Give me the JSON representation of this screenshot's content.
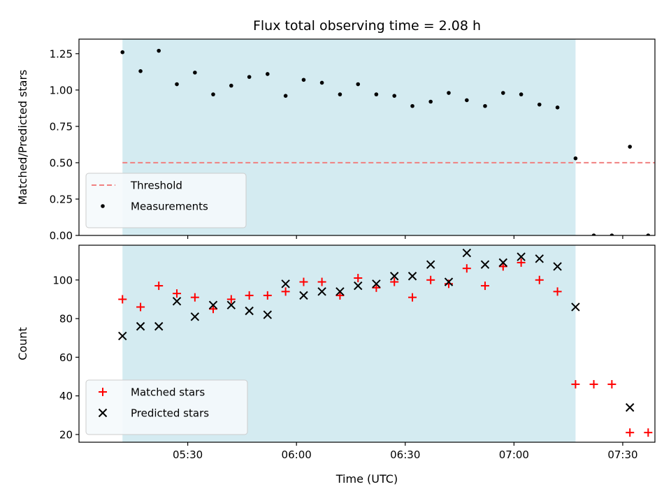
{
  "chart_data": {
    "type": "scatter",
    "title": "Flux total observing time = 2.08 h",
    "xlabel": "Time (UTC)",
    "x_unit": "minutes",
    "x_range": [
      5.0,
      7.648
    ],
    "x_ticks": [
      {
        "value": 5.5,
        "label": "05:30"
      },
      {
        "value": 6.0,
        "label": "06:00"
      },
      {
        "value": 6.5,
        "label": "06:30"
      },
      {
        "value": 7.0,
        "label": "07:00"
      },
      {
        "value": 7.5,
        "label": "07:30"
      }
    ],
    "shaded_interval": [
      5.2,
      7.283
    ],
    "panels": [
      {
        "ylabel": "Matched/Predicted stars",
        "ylim": [
          0,
          1.35
        ],
        "yticks": [
          "0.00",
          "0.25",
          "0.50",
          "0.75",
          "1.00",
          "1.25"
        ],
        "threshold": {
          "name": "Threshold",
          "y": 0.5,
          "x": [
            5.2,
            7.8
          ],
          "color": "#f08080"
        },
        "legend": "lower-left",
        "series": [
          {
            "name": "Measurements",
            "marker": "dot",
            "color": "#000000",
            "x": [
              5.2,
              5.283,
              5.367,
              5.45,
              5.533,
              5.617,
              5.7,
              5.783,
              5.867,
              5.95,
              6.033,
              6.117,
              6.2,
              6.283,
              6.367,
              6.45,
              6.533,
              6.617,
              6.7,
              6.783,
              6.867,
              6.95,
              7.033,
              7.117,
              7.2,
              7.283,
              7.367,
              7.45,
              7.533,
              7.617
            ],
            "y": [
              1.26,
              1.13,
              1.27,
              1.04,
              1.12,
              0.97,
              1.03,
              1.09,
              1.11,
              0.96,
              1.07,
              1.05,
              0.97,
              1.04,
              0.97,
              0.96,
              0.89,
              0.92,
              0.98,
              0.93,
              0.89,
              0.98,
              0.97,
              0.9,
              0.88,
              0.53,
              0.0,
              0.0,
              0.61,
              0.0
            ]
          }
        ]
      },
      {
        "ylabel": "Count",
        "ylim": [
          16,
          118
        ],
        "yticks": [
          "20",
          "40",
          "60",
          "80",
          "100"
        ],
        "legend": "lower-left",
        "series": [
          {
            "name": "Matched stars",
            "marker": "plus",
            "color": "#ff0000",
            "x": [
              5.2,
              5.283,
              5.367,
              5.45,
              5.533,
              5.617,
              5.7,
              5.783,
              5.867,
              5.95,
              6.033,
              6.117,
              6.2,
              6.283,
              6.367,
              6.45,
              6.533,
              6.617,
              6.7,
              6.783,
              6.867,
              6.95,
              7.033,
              7.117,
              7.2,
              7.283,
              7.367,
              7.45,
              7.533,
              7.617
            ],
            "y": [
              90,
              86,
              97,
              93,
              91,
              85,
              90,
              92,
              92,
              94,
              99,
              99,
              92,
              101,
              96,
              99,
              91,
              100,
              98,
              106,
              97,
              107,
              109,
              100,
              94,
              46,
              46,
              46,
              21,
              21
            ]
          },
          {
            "name": "Predicted stars",
            "marker": "x",
            "color": "#000000",
            "x": [
              5.2,
              5.283,
              5.367,
              5.45,
              5.533,
              5.617,
              5.7,
              5.783,
              5.867,
              5.95,
              6.033,
              6.117,
              6.2,
              6.283,
              6.367,
              6.45,
              6.533,
              6.617,
              6.7,
              6.783,
              6.867,
              6.95,
              7.033,
              7.117,
              7.2,
              7.283,
              7.533
            ],
            "y": [
              71,
              76,
              76,
              89,
              81,
              87,
              87,
              84,
              82,
              98,
              92,
              94,
              94,
              97,
              98,
              102,
              102,
              108,
              99,
              114,
              108,
              109,
              112,
              111,
              107,
              86,
              34
            ]
          }
        ]
      }
    ]
  },
  "colors": {
    "shade": "#d4ebf1",
    "threshold": "#f08080",
    "matched": "#ff0000",
    "predicted": "#000000",
    "measurement": "#000000",
    "legend_bg": "#f5f9fc",
    "legend_border": "#cccccc"
  }
}
